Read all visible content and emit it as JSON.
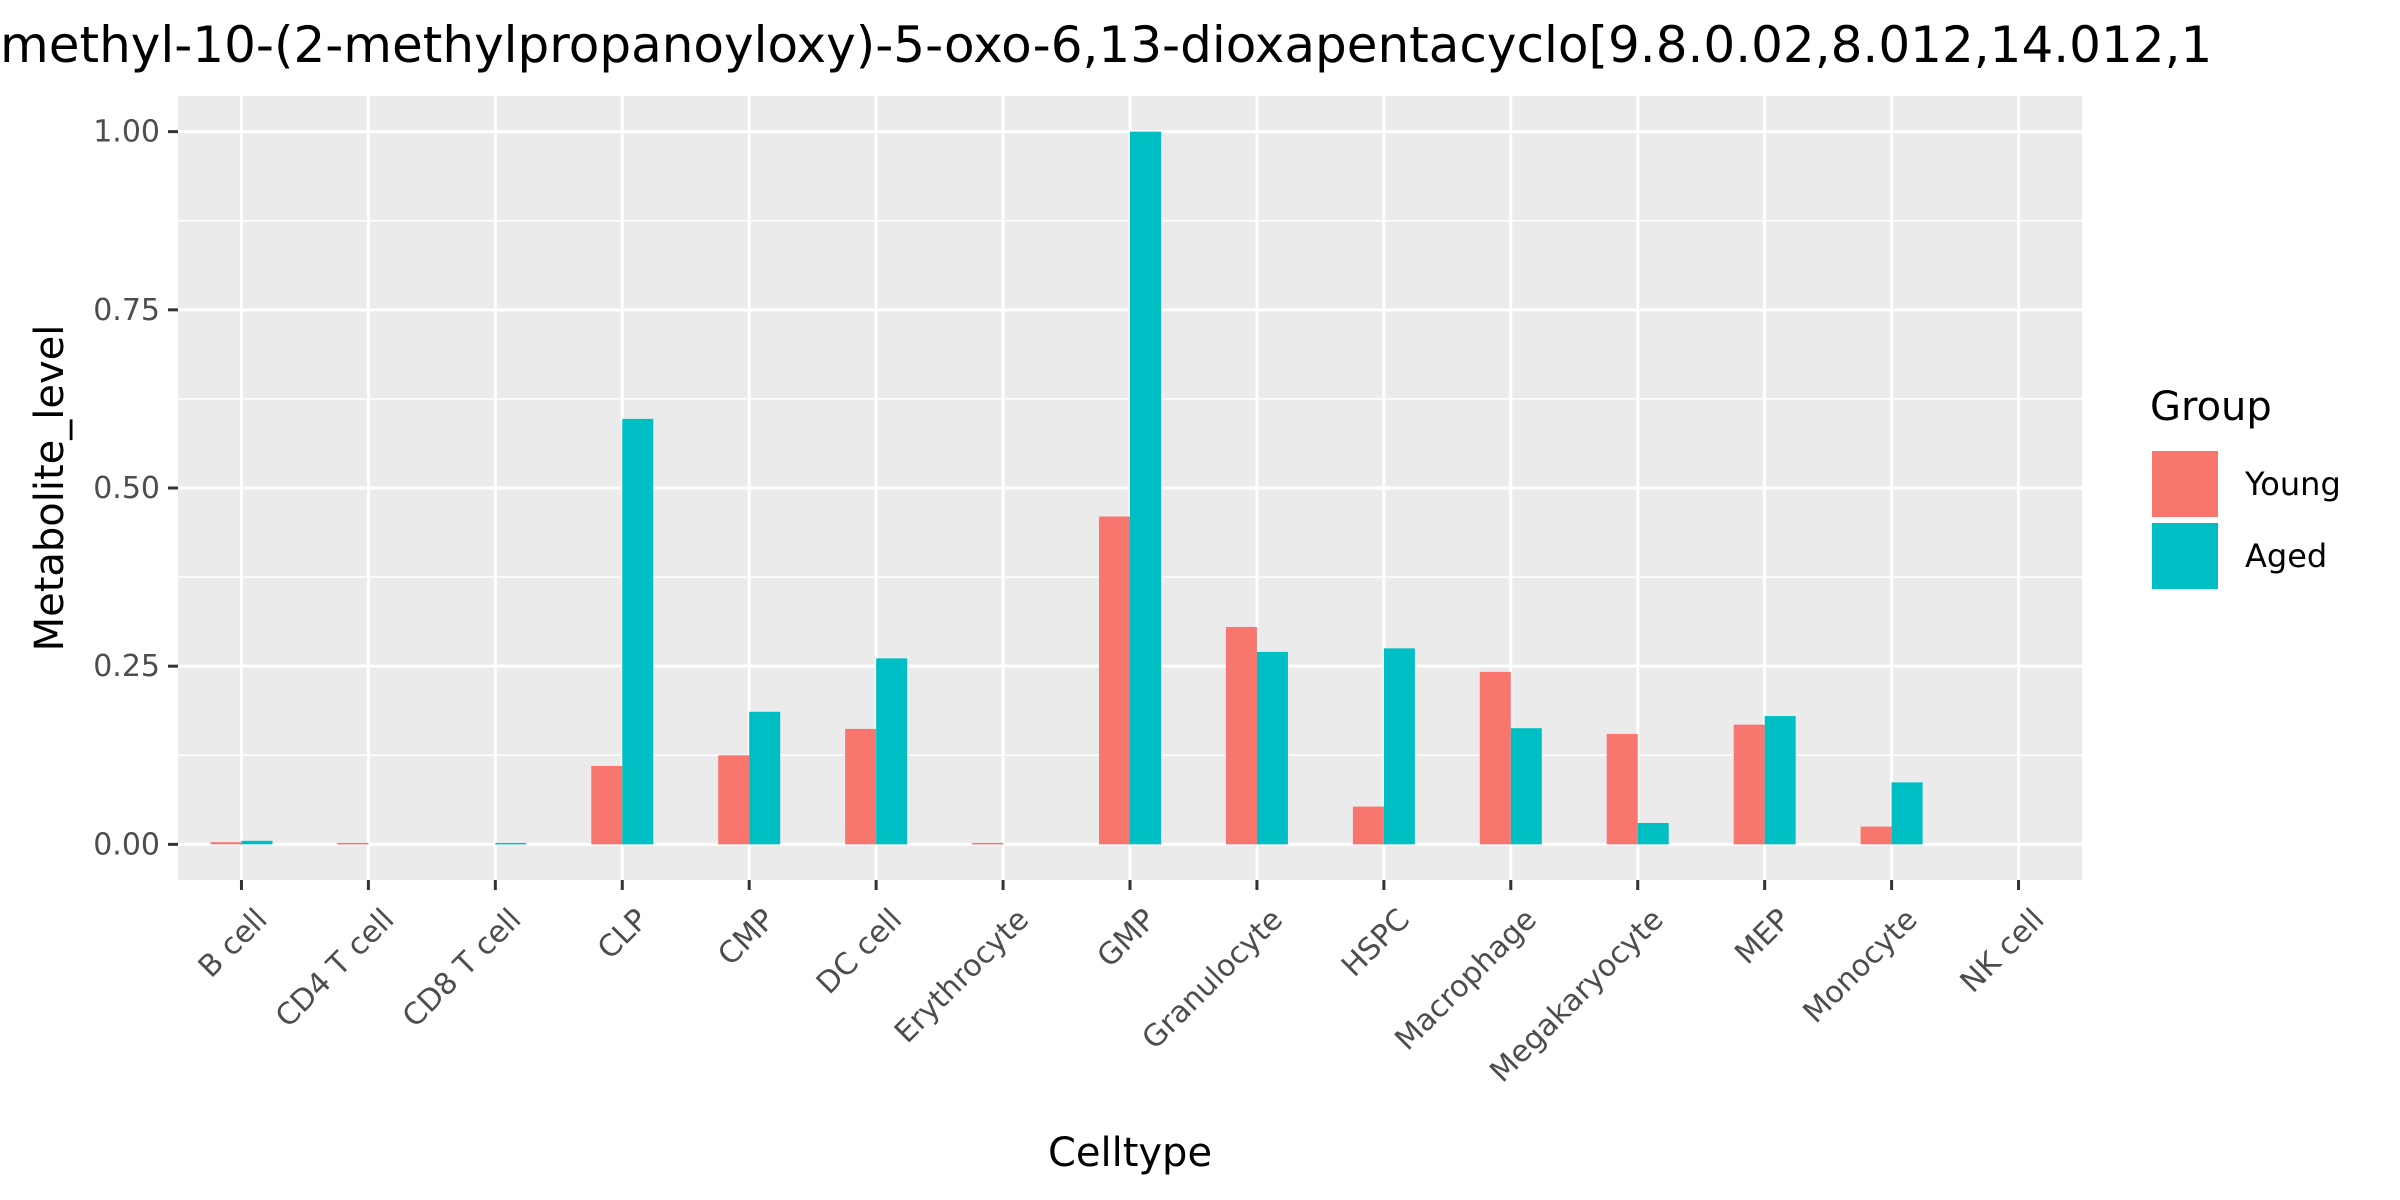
{
  "chart_data": {
    "type": "bar",
    "title": "methyl-10-(2-methylpropanoyloxy)-5-oxo-6,13-dioxapentacyclo[9.8.0.02,8.012,14.012,1",
    "xlabel": "Celltype",
    "ylabel": "Metabolite_level",
    "ylim": [
      -0.05,
      1.05
    ],
    "yticks": [
      0.0,
      0.25,
      0.5,
      0.75,
      1.0
    ],
    "ytick_labels": [
      "0.00",
      "0.25",
      "0.50",
      "0.75",
      "1.00"
    ],
    "categories": [
      "B cell",
      "CD4 T cell",
      "CD8 T cell",
      "CLP",
      "CMP",
      "DC cell",
      "Erythrocyte",
      "GMP",
      "Granulocyte",
      "HSPC",
      "Macrophage",
      "Megakaryocyte",
      "MEP",
      "Monocyte",
      "NK cell"
    ],
    "series": [
      {
        "name": "Young",
        "color": "#F8766D",
        "values": [
          0.003,
          0.002,
          0.0,
          0.11,
          0.125,
          0.162,
          0.002,
          0.46,
          0.305,
          0.053,
          0.242,
          0.155,
          0.168,
          0.025,
          0.0
        ]
      },
      {
        "name": "Aged",
        "color": "#00BFC4",
        "values": [
          0.005,
          0.0,
          0.002,
          0.597,
          0.186,
          0.261,
          0.0,
          1.0,
          0.27,
          0.275,
          0.163,
          0.03,
          0.18,
          0.087,
          0.0
        ]
      }
    ],
    "legend": {
      "title": "Group",
      "position": "right"
    },
    "grid": true,
    "panel_background": "#EBEBEB",
    "grid_color": "#FFFFFF"
  }
}
